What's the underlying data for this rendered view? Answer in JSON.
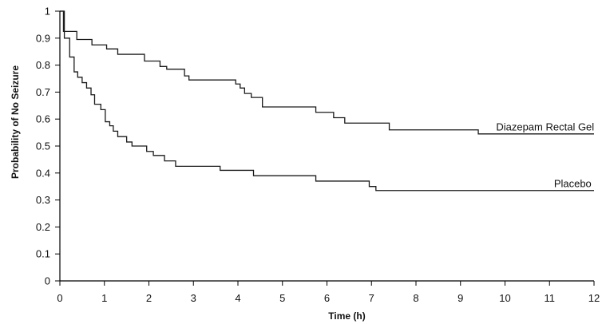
{
  "chart_data": {
    "type": "line",
    "title": "",
    "xlabel": "Time (h)",
    "ylabel": "Probability of No Seizure",
    "xlim": [
      0,
      12
    ],
    "ylim": [
      0,
      1
    ],
    "x_ticks": [
      0,
      1,
      2,
      3,
      4,
      5,
      6,
      7,
      8,
      9,
      10,
      11,
      12
    ],
    "y_ticks": [
      0,
      0.1,
      0.2,
      0.3,
      0.4,
      0.5,
      0.6,
      0.7,
      0.8,
      0.9,
      1
    ],
    "y_tick_labels": [
      "0",
      "0.1",
      "0.2",
      "0.3",
      "0.4",
      "0.5",
      "0.6",
      "0.7",
      "0.8",
      "0.9",
      "1"
    ],
    "grid": false,
    "step": true,
    "series": [
      {
        "name": "Diazepam Rectal Gel",
        "label_at": [
          9.8,
          0.57
        ],
        "points": [
          [
            0,
            1
          ],
          [
            0.08,
            0.925
          ],
          [
            0.38,
            0.895
          ],
          [
            0.72,
            0.875
          ],
          [
            1.05,
            0.86
          ],
          [
            1.3,
            0.84
          ],
          [
            1.9,
            0.815
          ],
          [
            2.25,
            0.795
          ],
          [
            2.4,
            0.785
          ],
          [
            2.8,
            0.76
          ],
          [
            2.9,
            0.745
          ],
          [
            3.95,
            0.73
          ],
          [
            4.05,
            0.715
          ],
          [
            4.15,
            0.695
          ],
          [
            4.3,
            0.68
          ],
          [
            4.55,
            0.645
          ],
          [
            5.75,
            0.625
          ],
          [
            6.15,
            0.605
          ],
          [
            6.4,
            0.585
          ],
          [
            7.4,
            0.56
          ],
          [
            9.4,
            0.545
          ],
          [
            12,
            0.545
          ]
        ]
      },
      {
        "name": "Placebo",
        "label_at": [
          11.1,
          0.36
        ],
        "points": [
          [
            0,
            1
          ],
          [
            0.1,
            0.9
          ],
          [
            0.22,
            0.83
          ],
          [
            0.32,
            0.775
          ],
          [
            0.4,
            0.755
          ],
          [
            0.5,
            0.735
          ],
          [
            0.6,
            0.715
          ],
          [
            0.7,
            0.69
          ],
          [
            0.78,
            0.655
          ],
          [
            0.92,
            0.635
          ],
          [
            1.02,
            0.59
          ],
          [
            1.12,
            0.575
          ],
          [
            1.2,
            0.555
          ],
          [
            1.3,
            0.535
          ],
          [
            1.5,
            0.515
          ],
          [
            1.62,
            0.5
          ],
          [
            1.95,
            0.48
          ],
          [
            2.1,
            0.465
          ],
          [
            2.35,
            0.445
          ],
          [
            2.6,
            0.425
          ],
          [
            3.6,
            0.41
          ],
          [
            4.35,
            0.39
          ],
          [
            5.75,
            0.37
          ],
          [
            6.95,
            0.35
          ],
          [
            7.1,
            0.335
          ],
          [
            12,
            0.335
          ]
        ]
      }
    ]
  }
}
